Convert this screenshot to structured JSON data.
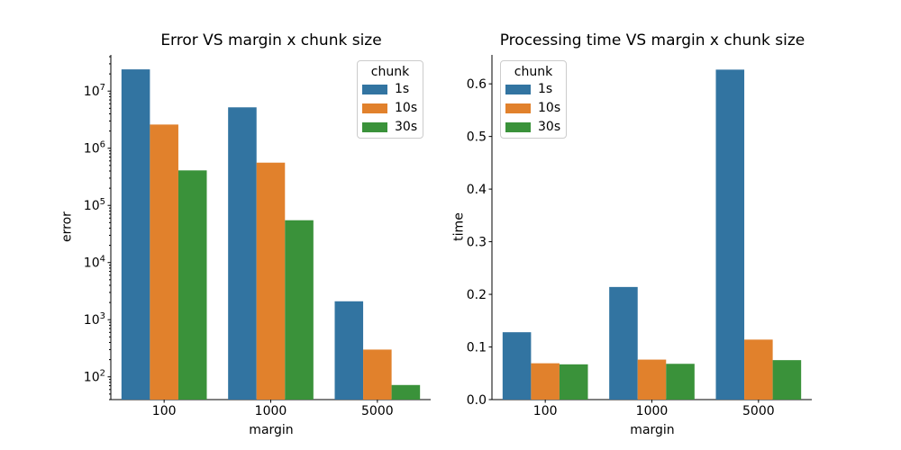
{
  "figure": {
    "background": "#ffffff",
    "text_color": "#000000",
    "spine_color": "#000000",
    "legend_border_color": "#cccccc"
  },
  "chart_data": [
    {
      "type": "bar",
      "title": "Error VS margin x chunk size",
      "xlabel": "margin",
      "ylabel": "error",
      "yscale": "log",
      "ylim": [
        40,
        43000000
      ],
      "ytick_exponents": [
        2,
        3,
        4,
        5,
        6,
        7
      ],
      "categories": [
        "100",
        "1000",
        "5000"
      ],
      "legend": {
        "title": "chunk",
        "position": "upper right"
      },
      "series": [
        {
          "name": "1s",
          "color": "#3274a1",
          "values": [
            24000000,
            5200000,
            2100
          ]
        },
        {
          "name": "10s",
          "color": "#e1812c",
          "values": [
            2600000,
            560000,
            300
          ]
        },
        {
          "name": "30s",
          "color": "#3a923a",
          "values": [
            410000,
            55000,
            72
          ]
        }
      ]
    },
    {
      "type": "bar",
      "title": "Processing time VS margin x chunk size",
      "xlabel": "margin",
      "ylabel": "time",
      "yscale": "linear",
      "ylim": [
        0,
        0.655
      ],
      "yticks": [
        0.0,
        0.1,
        0.2,
        0.3,
        0.4,
        0.5,
        0.6
      ],
      "categories": [
        "100",
        "1000",
        "5000"
      ],
      "legend": {
        "title": "chunk",
        "position": "upper left"
      },
      "series": [
        {
          "name": "1s",
          "color": "#3274a1",
          "values": [
            0.128,
            0.214,
            0.627
          ]
        },
        {
          "name": "10s",
          "color": "#e1812c",
          "values": [
            0.069,
            0.076,
            0.114
          ]
        },
        {
          "name": "30s",
          "color": "#3a923a",
          "values": [
            0.067,
            0.068,
            0.075
          ]
        }
      ]
    }
  ]
}
